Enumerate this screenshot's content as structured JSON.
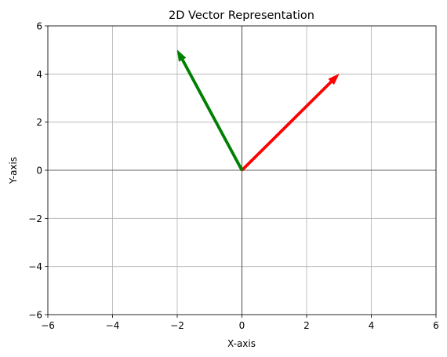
{
  "chart_data": {
    "type": "vector",
    "title": "2D Vector Representation",
    "xlabel": "X-axis",
    "ylabel": "Y-axis",
    "xlim": [
      -6,
      6
    ],
    "ylim": [
      -6,
      6
    ],
    "xticks": [
      -6,
      -4,
      -2,
      0,
      2,
      4,
      6
    ],
    "yticks": [
      -6,
      -4,
      -2,
      0,
      2,
      4,
      6
    ],
    "grid": true,
    "origin_lines": true,
    "vectors": [
      {
        "origin": [
          0,
          0
        ],
        "components": [
          3,
          4
        ],
        "color": "#ff0000"
      },
      {
        "origin": [
          0,
          0
        ],
        "components": [
          -2,
          5
        ],
        "color": "#008000"
      }
    ]
  }
}
